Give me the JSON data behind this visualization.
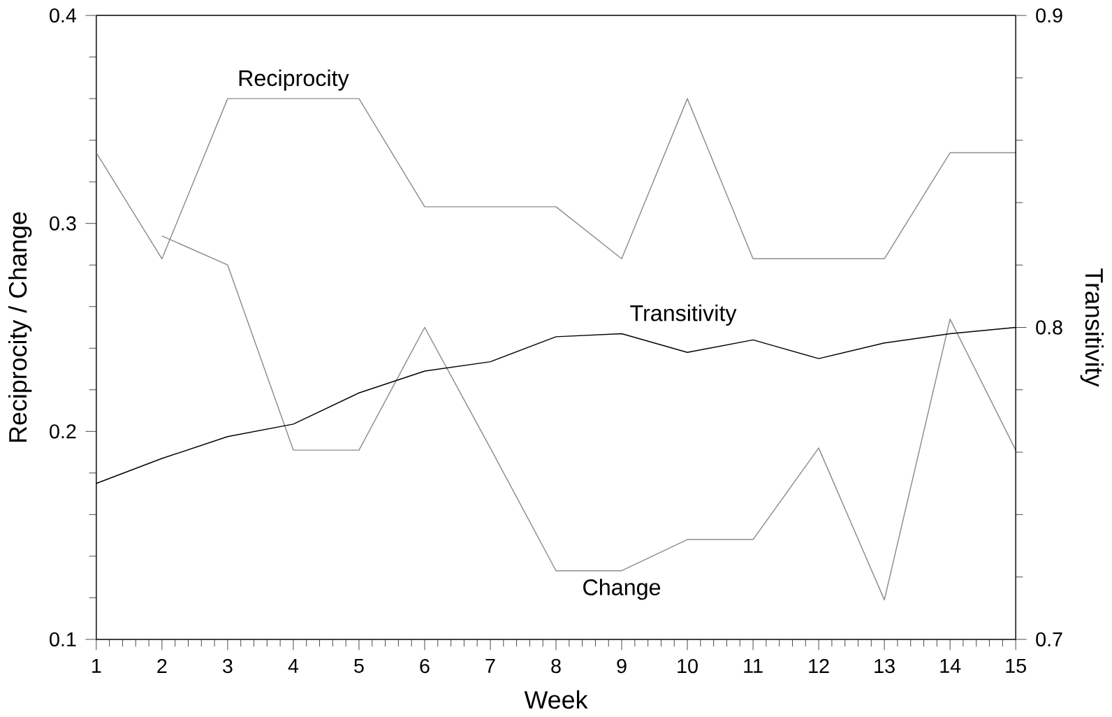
{
  "chart_data": {
    "type": "line",
    "xlabel": "Week",
    "ylabel": "Reciprocity / Change",
    "y2label": "Transitivity",
    "x": [
      1,
      2,
      3,
      4,
      5,
      6,
      7,
      8,
      9,
      10,
      11,
      12,
      13,
      14,
      15
    ],
    "xlim": [
      1,
      15
    ],
    "xticks": [
      1,
      2,
      3,
      4,
      5,
      6,
      7,
      8,
      9,
      10,
      11,
      12,
      13,
      14,
      15
    ],
    "ylim": [
      0.1,
      0.4
    ],
    "yticks": [
      0.1,
      0.2,
      0.3,
      0.4
    ],
    "y2lim": [
      0.7,
      0.9
    ],
    "y2ticks": [
      0.7,
      0.8,
      0.9
    ],
    "grid": false,
    "legend": false,
    "marker": "none",
    "line_style": "solid",
    "series": [
      {
        "name": "Reciprocity",
        "color": "#8c8c8c",
        "values": [
          0.334,
          0.283,
          0.36,
          0.36,
          0.36,
          0.308,
          0.308,
          0.308,
          0.283,
          0.36,
          0.283,
          0.283,
          0.283,
          0.334,
          0.334
        ]
      },
      {
        "name": "Change",
        "color": "#8c8c8c",
        "values": [
          null,
          0.294,
          0.28,
          0.191,
          0.191,
          0.25,
          0.192,
          0.133,
          0.133,
          0.148,
          0.148,
          0.192,
          0.119,
          0.254,
          0.191
        ]
      },
      {
        "name": "Transitivity",
        "color": "#000000",
        "axis": "y2",
        "values": [
          0.75,
          0.758,
          0.765,
          0.769,
          0.779,
          0.786,
          0.789,
          0.797,
          0.798,
          0.792,
          0.796,
          0.79,
          0.795,
          0.798,
          0.8
        ]
      }
    ]
  }
}
